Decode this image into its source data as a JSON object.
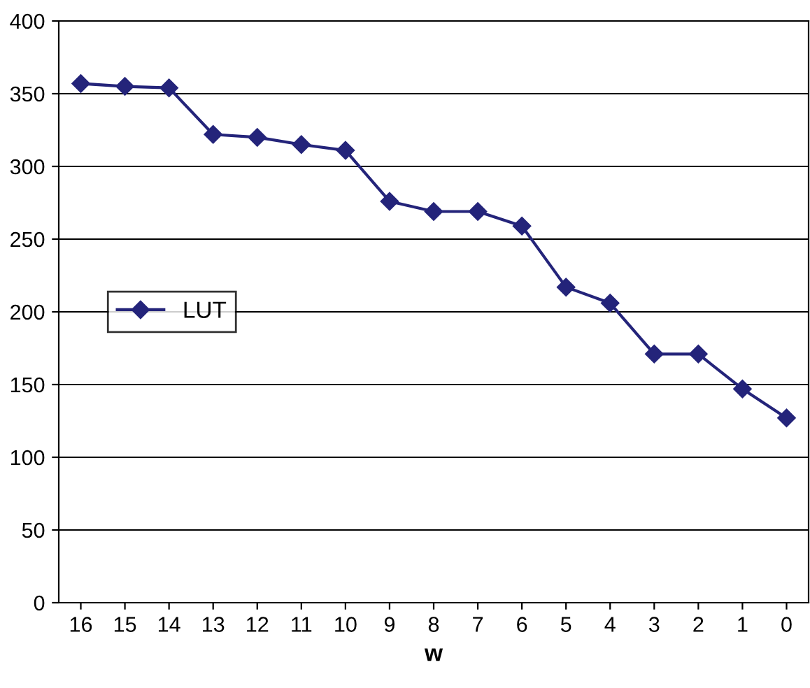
{
  "chart_data": {
    "type": "line",
    "xlabel": "w",
    "categories": [
      "16",
      "15",
      "14",
      "13",
      "12",
      "11",
      "10",
      "9",
      "8",
      "7",
      "6",
      "5",
      "4",
      "3",
      "2",
      "1",
      "0"
    ],
    "series": [
      {
        "name": "LUT",
        "color": "#24247a",
        "values": [
          357,
          355,
          354,
          322,
          320,
          315,
          311,
          276,
          269,
          269,
          259,
          217,
          206,
          171,
          171,
          147,
          127
        ]
      }
    ],
    "ylim": [
      0,
      400
    ],
    "yticks": [
      0,
      50,
      100,
      150,
      200,
      250,
      300,
      350,
      400
    ],
    "grid": "y",
    "legend": "center left",
    "marker": "diamond",
    "line_style": "solid"
  }
}
